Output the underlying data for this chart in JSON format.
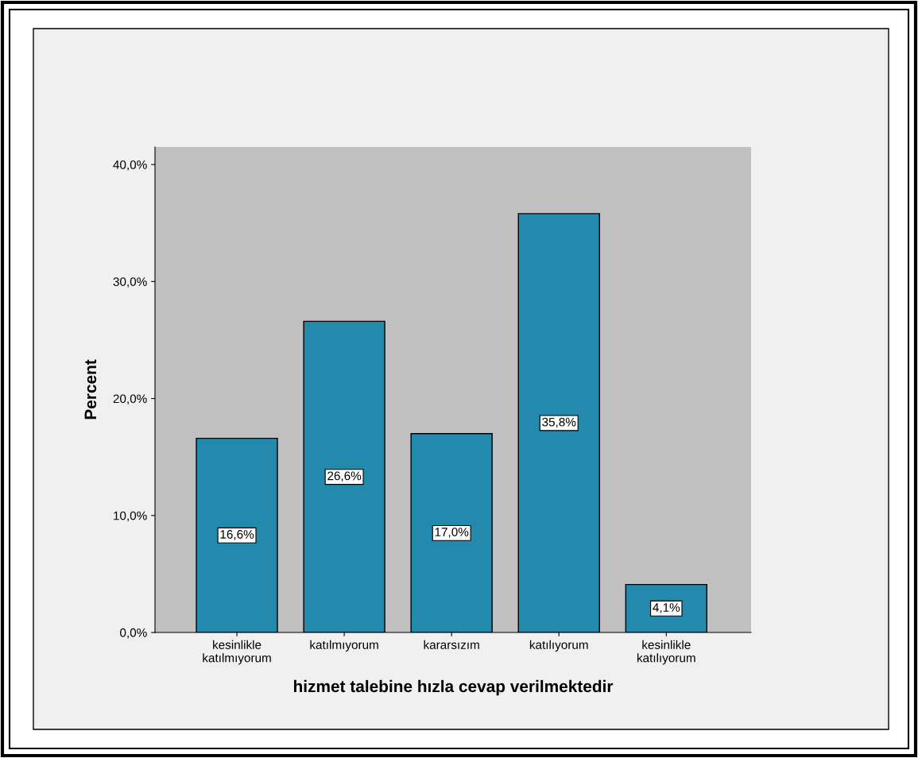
{
  "chart_data": {
    "type": "bar",
    "xlabel": "hizmet talebine hızla cevap verilmektedir",
    "ylabel": "Percent",
    "categories": [
      "kesinlikle\nkatılmıyorum",
      "katılmıyorum",
      "kararsızım",
      "katılıyorum",
      "kesinlikle\nkatılıyorum"
    ],
    "values": [
      16.6,
      26.6,
      17.0,
      35.8,
      4.1
    ],
    "value_labels": [
      "16,6%",
      "26,6%",
      "17,0%",
      "35,8%",
      "4,1%"
    ],
    "color": "#2389ad",
    "ylim": [
      0,
      41.5
    ],
    "yticks": [
      {
        "value": 0,
        "label": "0,0%"
      },
      {
        "value": 10,
        "label": "10,0%"
      },
      {
        "value": 20,
        "label": "20,0%"
      },
      {
        "value": 30,
        "label": "30,0%"
      },
      {
        "value": 40,
        "label": "40,0%"
      }
    ],
    "grid": false
  }
}
